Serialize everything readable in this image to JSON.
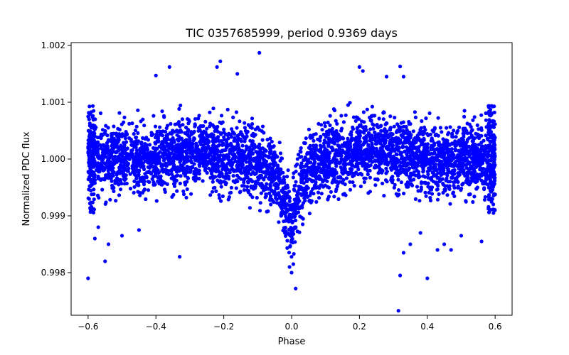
{
  "chart_data": {
    "type": "scatter",
    "title": "TIC 0357685999, period 0.9369 days",
    "xlabel": "Phase",
    "ylabel": "Normalized PDC flux",
    "xlim": [
      -0.65,
      0.65
    ],
    "ylim": [
      0.99725,
      1.00205
    ],
    "xticks": [
      -0.6,
      -0.4,
      -0.2,
      0.0,
      0.2,
      0.4,
      0.6
    ],
    "xtick_labels": [
      "−0.6",
      "−0.4",
      "−0.2",
      "0.0",
      "0.2",
      "0.4",
      "0.6"
    ],
    "yticks": [
      0.998,
      0.999,
      1.0,
      1.001,
      1.002
    ],
    "ytick_labels": [
      "0.998",
      "0.999",
      "1.000",
      "1.001",
      "1.002"
    ],
    "grid": false,
    "legend": "none",
    "colors": {
      "points": "#0000ff",
      "axes": "#000000",
      "background": "#ffffff"
    },
    "series": [
      {
        "x": [
          -0.6,
          -0.55,
          -0.5,
          -0.45,
          -0.4,
          -0.35,
          -0.3,
          -0.25,
          -0.2,
          -0.15,
          -0.1,
          -0.05,
          -0.03,
          -0.015,
          0.0,
          0.015,
          0.03,
          0.05,
          0.1,
          0.15,
          0.2,
          0.25,
          0.3,
          0.35,
          0.4,
          0.45,
          0.5,
          0.55,
          0.6
        ],
        "y_center": [
          1.0,
          1.0,
          1.0,
          1.0,
          1.0,
          1.0001,
          1.0001,
          1.0001,
          1.0,
          1.0,
          0.9999,
          0.9997,
          0.9994,
          0.9991,
          0.9989,
          0.9992,
          0.9996,
          0.9998,
          1.0,
          1.0001,
          1.0002,
          1.0002,
          1.0001,
          1.0001,
          1.0,
          1.0,
          1.0,
          1.0,
          1.0
        ],
        "y_spread": 0.00065
      }
    ],
    "outliers": [
      [
        -0.6,
        0.9979
      ],
      [
        -0.55,
        0.9982
      ],
      [
        -0.58,
        0.9986
      ],
      [
        -0.54,
        0.9985
      ],
      [
        -0.57,
        0.9988
      ],
      [
        -0.33,
        0.99828
      ],
      [
        -0.36,
        1.00162
      ],
      [
        -0.4,
        1.00147
      ],
      [
        -0.22,
        1.00162
      ],
      [
        -0.21,
        1.00172
      ],
      [
        -0.16,
        1.0015
      ],
      [
        -0.095,
        1.00187
      ],
      [
        -0.02,
        0.9987
      ],
      [
        -0.006,
        0.9981
      ],
      [
        0.012,
        0.99772
      ],
      [
        0.0,
        0.998
      ],
      [
        0.005,
        0.99815
      ],
      [
        0.2,
        1.00162
      ],
      [
        0.21,
        1.00155
      ],
      [
        0.28,
        1.00145
      ],
      [
        0.32,
        1.00163
      ],
      [
        0.33,
        1.00145
      ],
      [
        0.315,
        0.99733
      ],
      [
        0.32,
        0.99795
      ],
      [
        0.33,
        0.99835
      ],
      [
        0.35,
        0.9985
      ],
      [
        0.4,
        0.9979
      ],
      [
        0.43,
        0.9984
      ],
      [
        0.47,
        0.9984
      ],
      [
        0.5,
        0.99865
      ],
      [
        0.56,
        0.99855
      ],
      [
        -0.5,
        0.99865
      ],
      [
        -0.45,
        0.99875
      ],
      [
        0.45,
        0.9985
      ],
      [
        0.38,
        0.9987
      ]
    ]
  }
}
